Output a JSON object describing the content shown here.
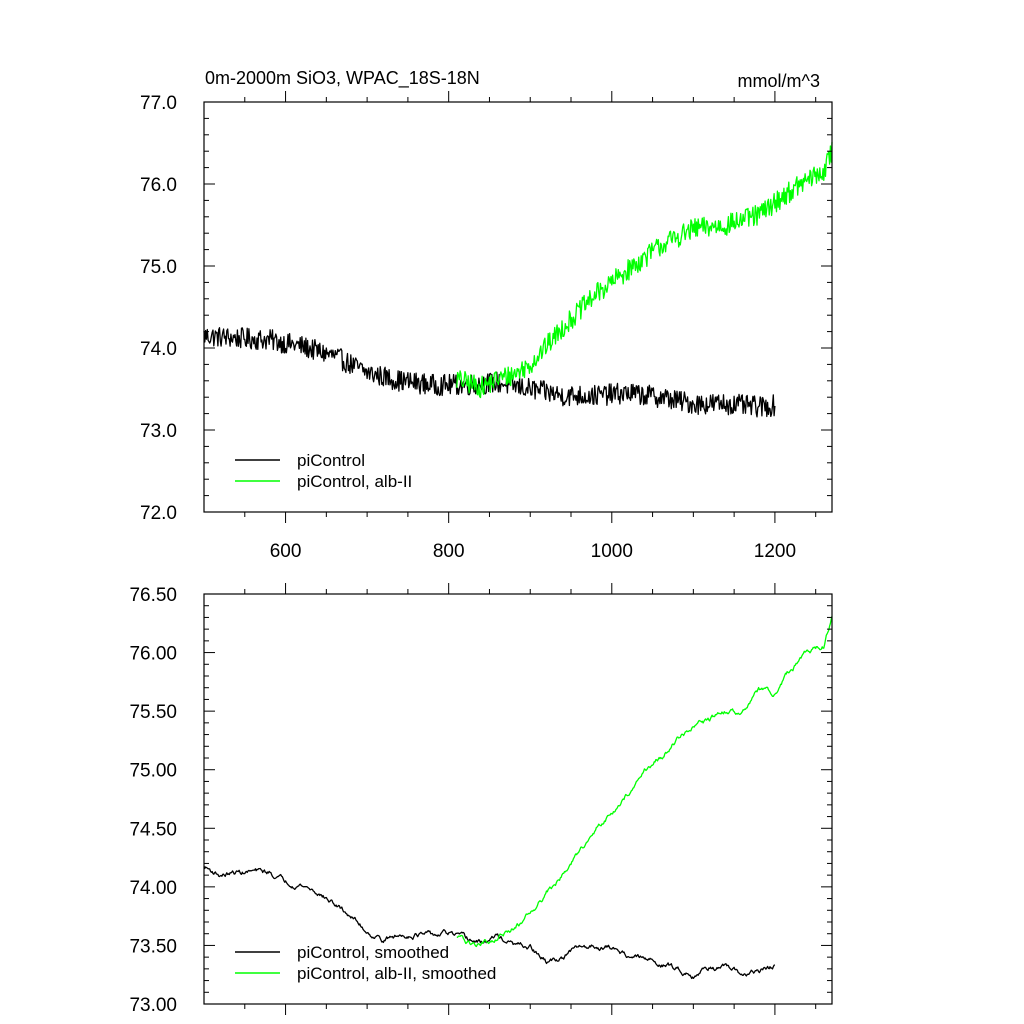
{
  "header": {
    "title": "0m-2000m SiO3, WPAC_18S-18N",
    "units": "mmol/m^3"
  },
  "colors": {
    "picontrol": "#000000",
    "alb2": "#00ff00"
  },
  "chart_data": [
    {
      "type": "line",
      "id": "raw",
      "xlim": [
        500,
        1270
      ],
      "ylim": [
        72.0,
        77.0
      ],
      "x_ticks": [
        600,
        800,
        1000,
        1200
      ],
      "x_tick_labels": [
        "600",
        "800",
        "1000",
        "1200"
      ],
      "y_ticks": [
        72.0,
        73.0,
        74.0,
        75.0,
        76.0,
        77.0
      ],
      "y_tick_labels": [
        "72.0",
        "73.0",
        "74.0",
        "75.0",
        "76.0",
        "77.0"
      ],
      "legend_position": "bottom-left",
      "noise_amplitude": 0.13,
      "series": [
        {
          "name": "piControl",
          "color": "#000000",
          "x": [
            500,
            540,
            580,
            620,
            660,
            700,
            740,
            780,
            820,
            860,
            900,
            940,
            980,
            1020,
            1060,
            1100,
            1140,
            1180,
            1200
          ],
          "y": [
            74.15,
            74.12,
            74.1,
            74.02,
            73.9,
            73.7,
            73.6,
            73.55,
            73.55,
            73.58,
            73.5,
            73.42,
            73.42,
            73.45,
            73.4,
            73.32,
            73.32,
            73.28,
            73.3
          ]
        },
        {
          "name": "piControl, alb-II",
          "color": "#00ff00",
          "x": [
            810,
            840,
            860,
            880,
            900,
            940,
            980,
            1020,
            1060,
            1100,
            1140,
            1180,
            1210,
            1240,
            1260,
            1270
          ],
          "y": [
            73.62,
            73.52,
            73.62,
            73.68,
            73.8,
            74.25,
            74.65,
            74.95,
            75.25,
            75.45,
            75.5,
            75.62,
            75.85,
            76.05,
            76.15,
            76.4
          ]
        }
      ]
    },
    {
      "type": "line",
      "id": "smoothed",
      "xlim": [
        500,
        1270
      ],
      "ylim": [
        73.0,
        76.5
      ],
      "x_ticks": [
        600,
        800,
        1000,
        1200
      ],
      "y_ticks": [
        73.0,
        73.5,
        74.0,
        74.5,
        75.0,
        75.5,
        76.0,
        76.5
      ],
      "y_tick_labels": [
        "73.00",
        "73.50",
        "74.00",
        "74.50",
        "75.00",
        "75.50",
        "76.00",
        "76.50"
      ],
      "legend_position": "bottom-left",
      "noise_amplitude": 0.025,
      "series": [
        {
          "name": "piControl, smoothed",
          "color": "#000000",
          "x": [
            500,
            520,
            540,
            560,
            580,
            600,
            620,
            640,
            660,
            680,
            700,
            720,
            740,
            760,
            780,
            800,
            820,
            840,
            860,
            880,
            900,
            920,
            940,
            960,
            980,
            1000,
            1020,
            1040,
            1060,
            1080,
            1100,
            1120,
            1140,
            1160,
            1180,
            1200
          ],
          "y": [
            74.17,
            74.1,
            74.12,
            74.13,
            74.12,
            74.05,
            74.02,
            73.95,
            73.85,
            73.75,
            73.62,
            73.55,
            73.58,
            73.6,
            73.58,
            73.6,
            73.55,
            73.52,
            73.58,
            73.5,
            73.48,
            73.35,
            73.4,
            73.48,
            73.5,
            73.48,
            73.42,
            73.38,
            73.35,
            73.3,
            73.25,
            73.32,
            73.3,
            73.25,
            73.28,
            73.32
          ]
        },
        {
          "name": "piControl, alb-II, smoothed",
          "color": "#00ff00",
          "x": [
            810,
            830,
            850,
            870,
            890,
            900,
            920,
            940,
            960,
            980,
            1000,
            1020,
            1040,
            1060,
            1080,
            1100,
            1120,
            1140,
            1160,
            1180,
            1200,
            1220,
            1240,
            1260,
            1270
          ],
          "y": [
            73.58,
            73.5,
            73.55,
            73.6,
            73.7,
            73.8,
            73.95,
            74.1,
            74.3,
            74.5,
            74.65,
            74.8,
            75.0,
            75.1,
            75.25,
            75.35,
            75.42,
            75.5,
            75.5,
            75.68,
            75.65,
            75.85,
            76.0,
            76.05,
            76.3
          ]
        }
      ]
    }
  ]
}
